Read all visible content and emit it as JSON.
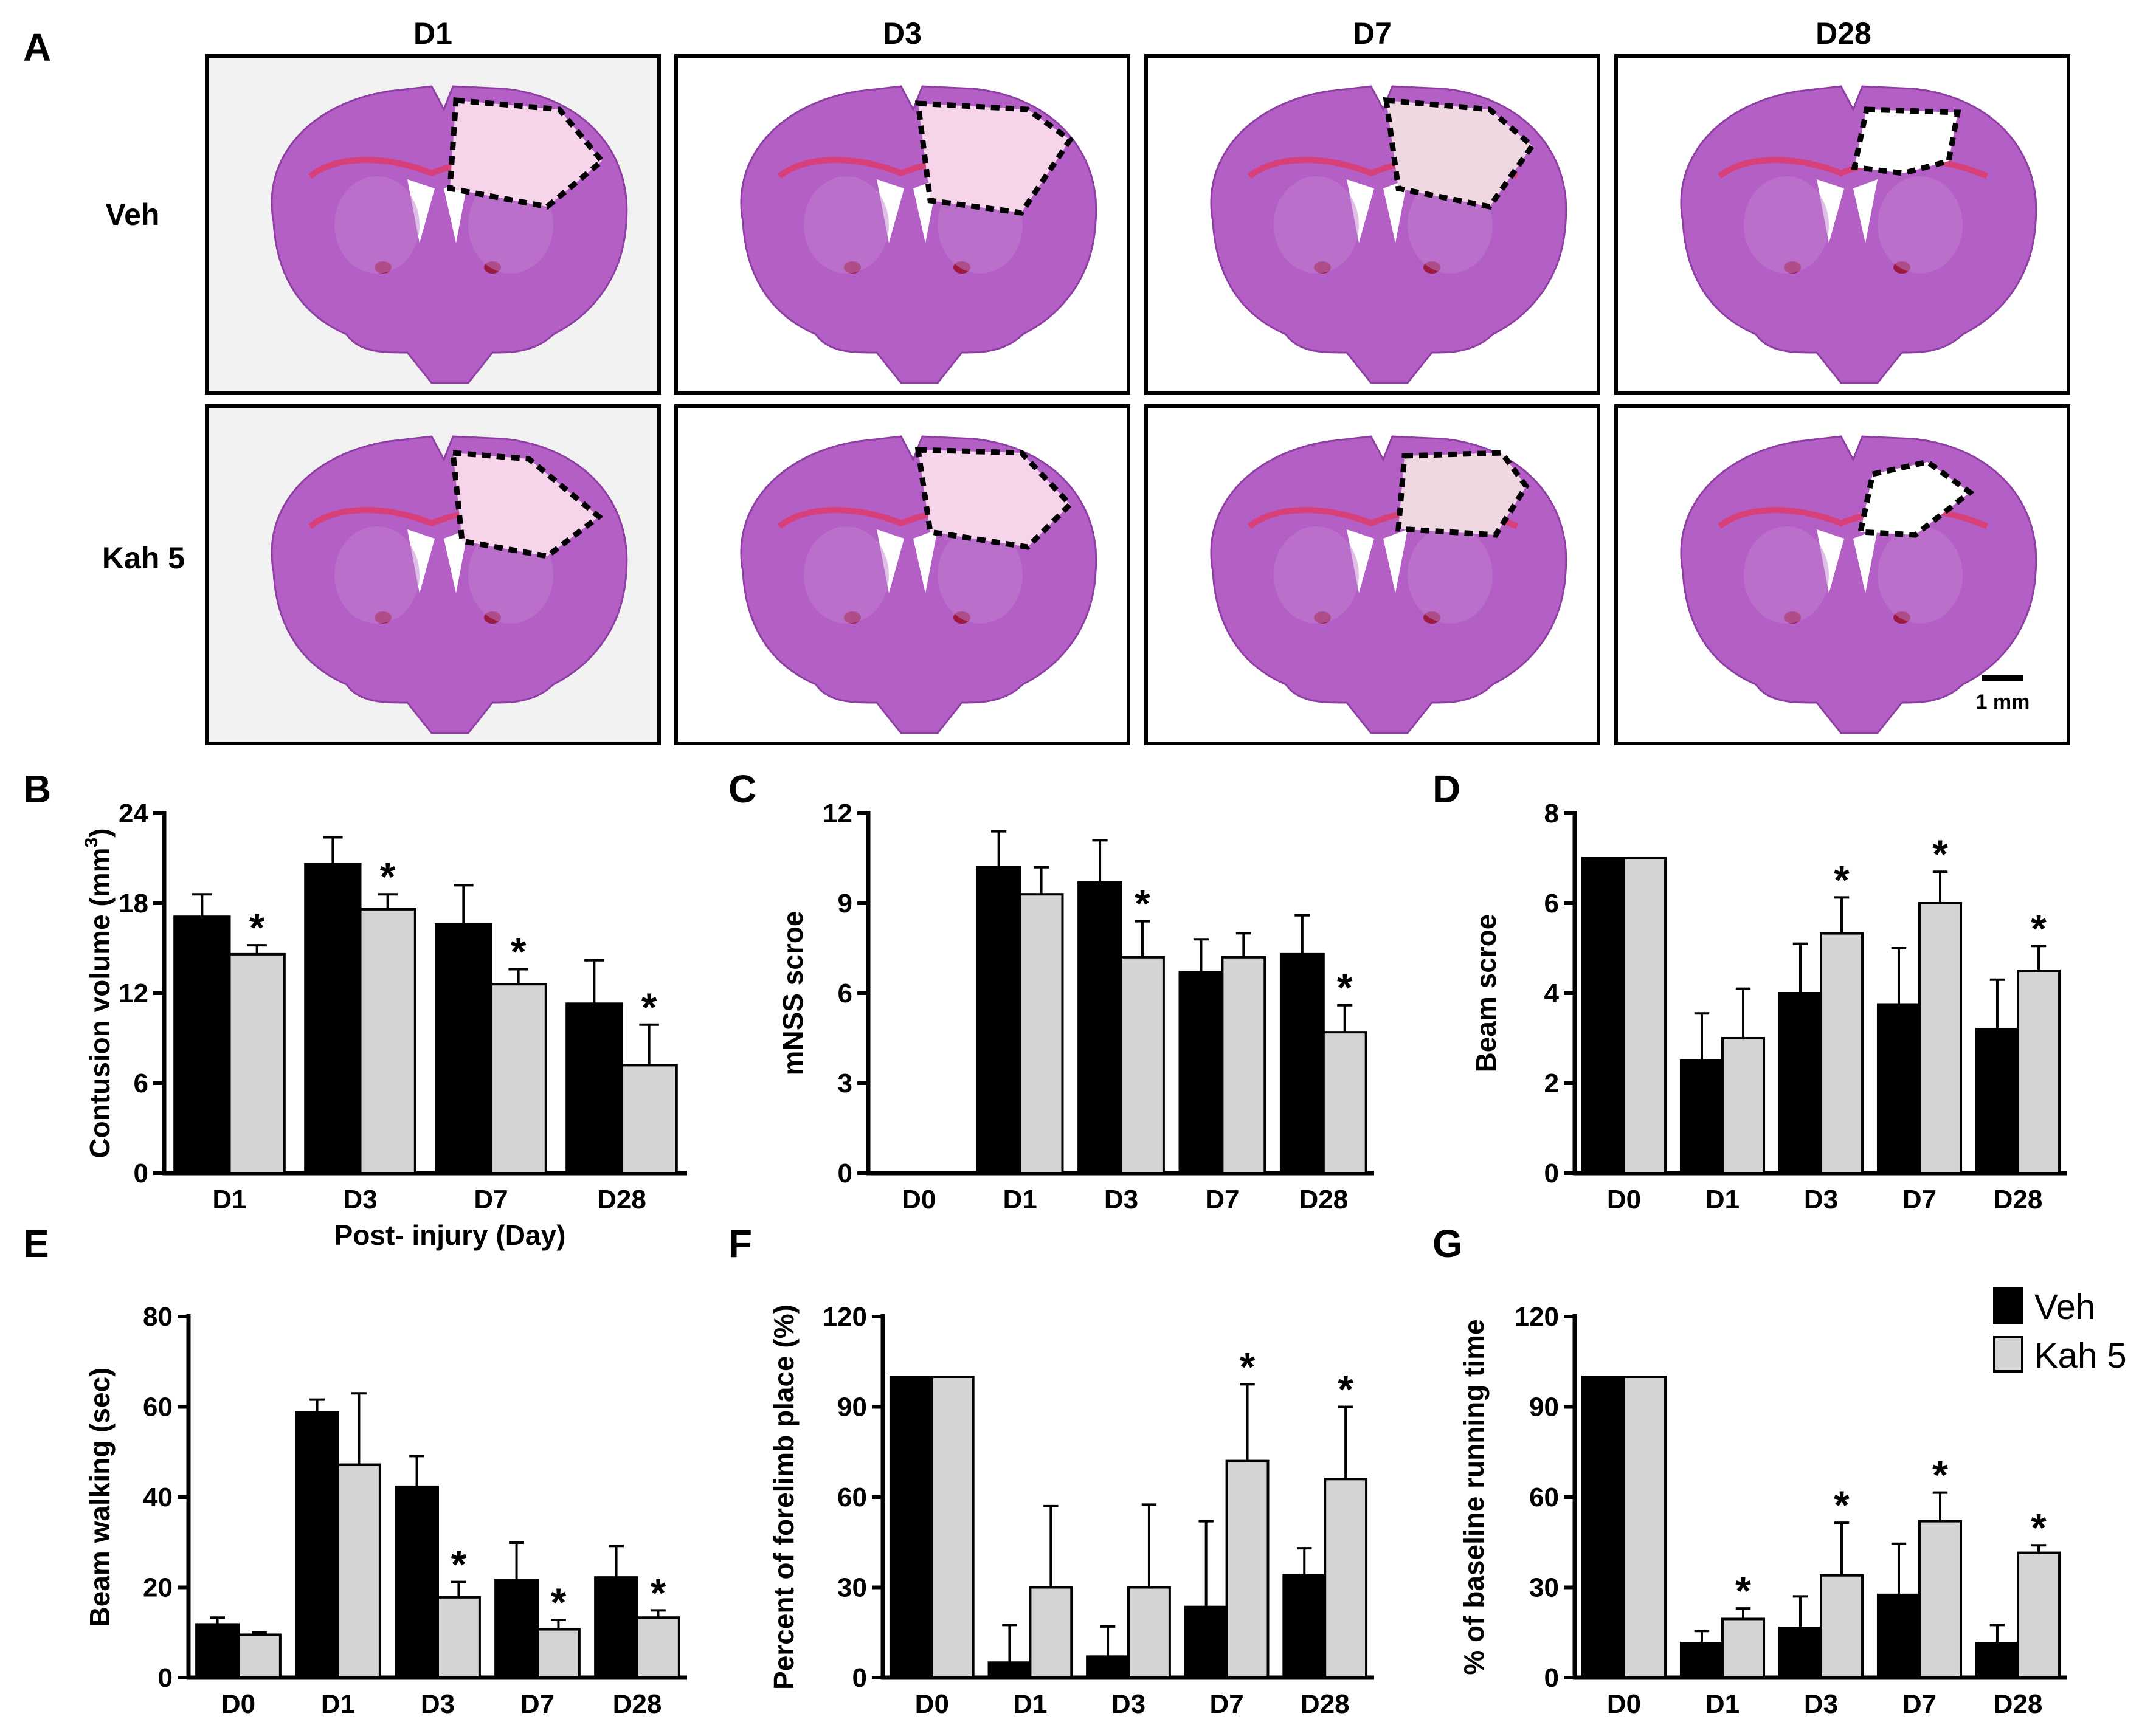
{
  "panel_a": {
    "letter": "A",
    "columns": [
      "D1",
      "D3",
      "D7",
      "D28"
    ],
    "rows": [
      "Veh",
      "Kah 5"
    ],
    "scale_bar_label": "1 mm"
  },
  "legend": {
    "veh": "Veh",
    "kah": "Kah 5"
  },
  "colors": {
    "veh": "#000000",
    "kah": "#d4d4d4",
    "tissue": "#b05cc4",
    "lesion": "#f4d2e6"
  },
  "chart_data": [
    {
      "id": "B",
      "letter": "B",
      "type": "bar",
      "ylabel": "Contusion volume (mm",
      "ylabel_sup": "3",
      "ylabel_end": ")",
      "xlabel": "Post- injury (Day)",
      "categories": [
        "D1",
        "D3",
        "D7",
        "D28"
      ],
      "ylim": [
        0,
        24
      ],
      "yticks": [
        "0",
        "6",
        "12",
        "18",
        "24"
      ],
      "series": [
        {
          "name": "Veh",
          "values": [
            17.1,
            20.6,
            16.6,
            11.3
          ],
          "errors": [
            1.5,
            1.8,
            2.6,
            2.9
          ]
        },
        {
          "name": "Kah 5",
          "values": [
            14.6,
            17.6,
            12.6,
            7.2
          ],
          "errors": [
            0.6,
            1.0,
            1.0,
            2.7
          ]
        }
      ],
      "significance": [
        "*",
        "*",
        "*",
        "*"
      ]
    },
    {
      "id": "C",
      "letter": "C",
      "type": "bar",
      "ylabel": "mNSS scroe",
      "ylabel_sup": "",
      "ylabel_end": "",
      "xlabel": "",
      "categories": [
        "D0",
        "D1",
        "D3",
        "D7",
        "D28"
      ],
      "ylim": [
        0,
        12
      ],
      "yticks": [
        "0",
        "3",
        "6",
        "9",
        "12"
      ],
      "series": [
        {
          "name": "Veh",
          "values": [
            0,
            10.2,
            9.7,
            6.7,
            7.3
          ],
          "errors": [
            0,
            1.2,
            1.4,
            1.1,
            1.3
          ]
        },
        {
          "name": "Kah 5",
          "values": [
            0,
            9.3,
            7.2,
            7.2,
            4.7
          ],
          "errors": [
            0,
            0.9,
            1.2,
            0.8,
            0.9
          ]
        }
      ],
      "significance": [
        "",
        "",
        "*",
        "",
        "*"
      ]
    },
    {
      "id": "D",
      "letter": "D",
      "type": "bar",
      "ylabel": "Beam scroe",
      "ylabel_sup": "",
      "ylabel_end": "",
      "xlabel": "",
      "categories": [
        "D0",
        "D1",
        "D3",
        "D7",
        "D28"
      ],
      "ylim": [
        0,
        8
      ],
      "yticks": [
        "0",
        "2",
        "4",
        "6",
        "8"
      ],
      "series": [
        {
          "name": "Veh",
          "values": [
            7,
            2.5,
            4.0,
            3.75,
            3.2
          ],
          "errors": [
            0,
            1.05,
            1.1,
            1.25,
            1.1
          ]
        },
        {
          "name": "Kah 5",
          "values": [
            7,
            3.0,
            5.33,
            6.0,
            4.5
          ],
          "errors": [
            0,
            1.1,
            0.8,
            0.7,
            0.55
          ]
        }
      ],
      "significance": [
        "",
        "",
        "*",
        "*",
        "*"
      ]
    },
    {
      "id": "E",
      "letter": "E",
      "type": "bar",
      "ylabel": "Beam walking (sec)",
      "ylabel_sup": "",
      "ylabel_end": "",
      "xlabel": "",
      "categories": [
        "D0",
        "D1",
        "D3",
        "D7",
        "D28"
      ],
      "ylim": [
        0,
        80
      ],
      "yticks": [
        "0",
        "20",
        "40",
        "60",
        "80"
      ],
      "series": [
        {
          "name": "Veh",
          "values": [
            11.8,
            58.8,
            42.3,
            21.6,
            22.2
          ],
          "errors": [
            1.5,
            2.8,
            6.8,
            8.3,
            7.0
          ]
        },
        {
          "name": "Kah 5",
          "values": [
            9.5,
            47.2,
            17.8,
            10.7,
            13.3
          ],
          "errors": [
            0.5,
            15.8,
            3.4,
            2.1,
            1.6
          ]
        }
      ],
      "significance": [
        "",
        "",
        "*",
        "*",
        "*"
      ]
    },
    {
      "id": "F",
      "letter": "F",
      "type": "bar",
      "ylabel": "Percent of forelimb place (%)",
      "ylabel_sup": "",
      "ylabel_end": "",
      "xlabel": "",
      "categories": [
        "D0",
        "D1",
        "D3",
        "D7",
        "D28"
      ],
      "ylim": [
        0,
        120
      ],
      "yticks": [
        "0",
        "30",
        "60",
        "90",
        "120"
      ],
      "series": [
        {
          "name": "Veh",
          "values": [
            100,
            5,
            7,
            23.5,
            34
          ],
          "errors": [
            0,
            12.5,
            10,
            28.5,
            9
          ]
        },
        {
          "name": "Kah 5",
          "values": [
            100,
            30,
            30,
            72,
            66
          ],
          "errors": [
            0,
            27,
            27.5,
            25.5,
            24
          ]
        }
      ],
      "significance": [
        "",
        "",
        "",
        "*",
        "*"
      ]
    },
    {
      "id": "G",
      "letter": "G",
      "type": "bar",
      "ylabel": "% of baseline running time",
      "ylabel_sup": "",
      "ylabel_end": "",
      "xlabel": "",
      "categories": [
        "D0",
        "D1",
        "D3",
        "D7",
        "D28"
      ],
      "ylim": [
        0,
        120
      ],
      "yticks": [
        "0",
        "30",
        "60",
        "90",
        "120"
      ],
      "series": [
        {
          "name": "Veh",
          "values": [
            100,
            11.5,
            16.5,
            27.5,
            11.5
          ],
          "errors": [
            0,
            4,
            10.5,
            17,
            6
          ]
        },
        {
          "name": "Kah 5",
          "values": [
            100,
            19.5,
            34,
            52,
            41.5
          ],
          "errors": [
            0,
            3.5,
            17.5,
            9.5,
            2.5
          ]
        }
      ],
      "significance": [
        "",
        "*",
        "*",
        "*",
        "*"
      ]
    }
  ]
}
